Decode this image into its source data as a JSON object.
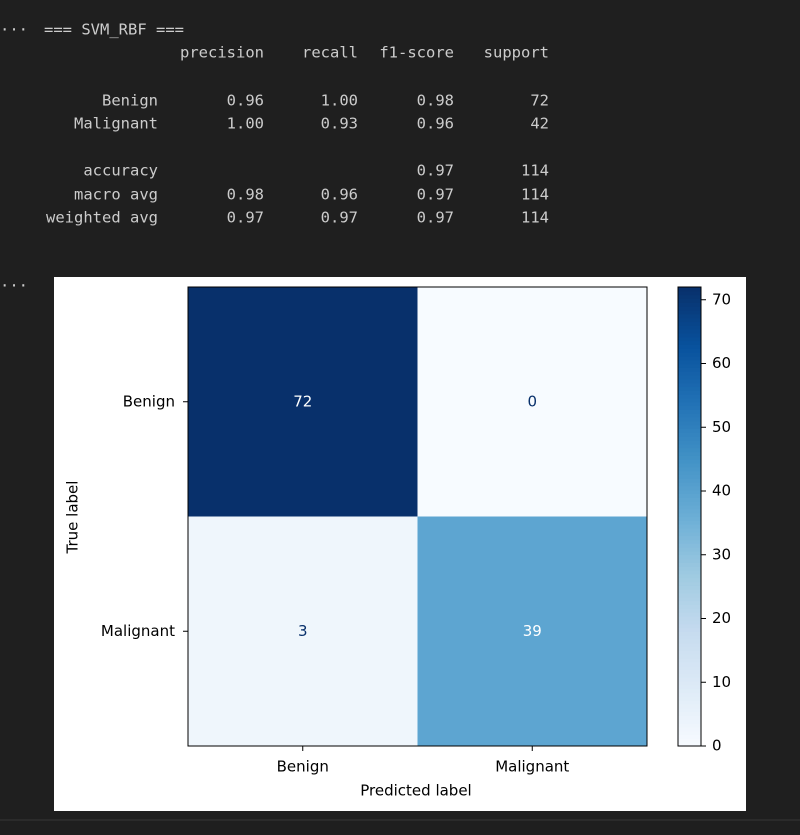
{
  "output_prompt": "···",
  "report": {
    "title": "=== SVM_RBF ===",
    "headers": {
      "precision": "precision",
      "recall": "recall",
      "f1_score": "f1-score",
      "support": "support"
    },
    "rows": [
      {
        "label": "Benign",
        "precision": "0.96",
        "recall": "1.00",
        "f1_score": "0.98",
        "support": "72"
      },
      {
        "label": "Malignant",
        "precision": "1.00",
        "recall": "0.93",
        "f1_score": "0.96",
        "support": "42"
      },
      {
        "label": "accuracy",
        "f1_score": "0.97",
        "support": "114"
      },
      {
        "label": "macro avg",
        "precision": "0.98",
        "recall": "0.96",
        "f1_score": "0.97",
        "support": "114"
      },
      {
        "label": "weighted avg",
        "precision": "0.97",
        "recall": "0.97",
        "f1_score": "0.97",
        "support": "114"
      }
    ]
  },
  "chart_data": {
    "type": "heatmap",
    "x_categories": [
      "Benign",
      "Malignant"
    ],
    "y_categories": [
      "Benign",
      "Malignant"
    ],
    "values": [
      [
        72,
        0
      ],
      [
        3,
        39
      ]
    ],
    "xlabel": "Predicted label",
    "ylabel": "True label",
    "colormap": "Blues",
    "clim": [
      0,
      72
    ],
    "cticks": [
      0,
      10,
      20,
      30,
      40,
      50,
      60,
      70
    ]
  }
}
